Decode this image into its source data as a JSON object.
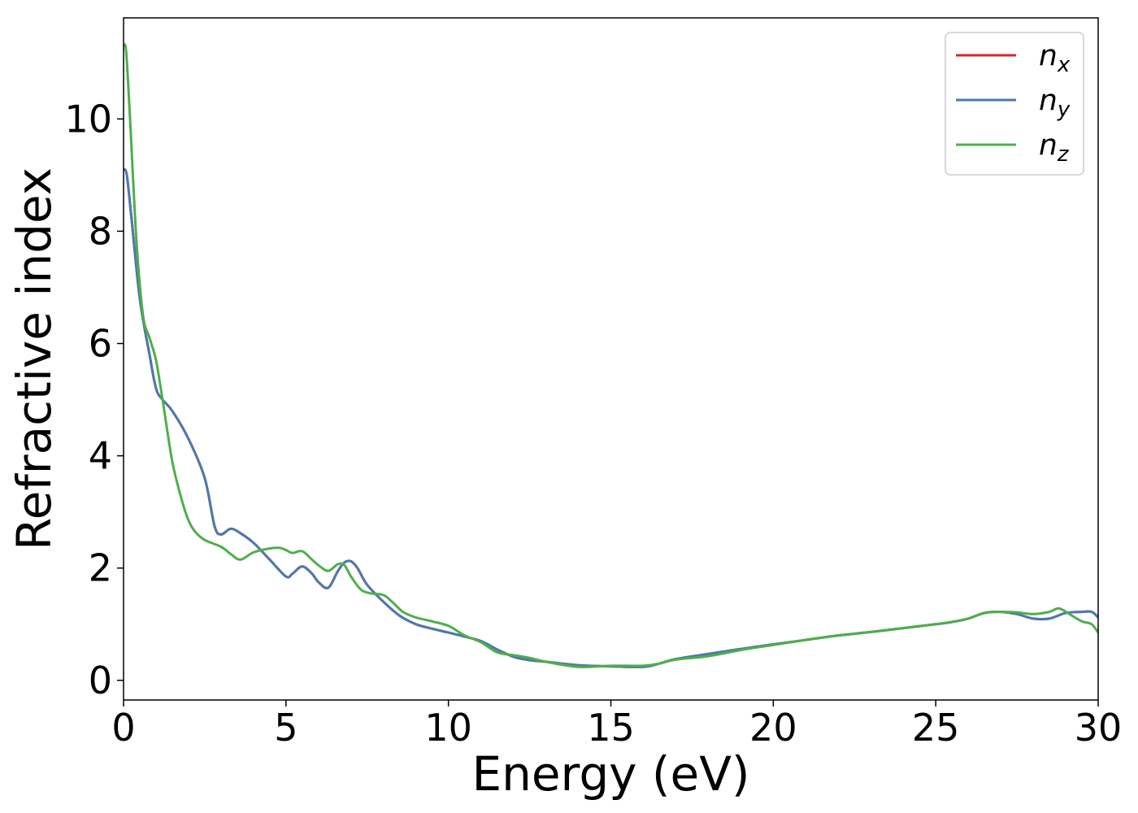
{
  "chart_data": {
    "type": "line",
    "title": "",
    "xlabel": "Energy (eV)",
    "ylabel": "Refractive index",
    "xlim": [
      0,
      30
    ],
    "ylim": [
      -0.35,
      11.8
    ],
    "xticks": [
      0,
      5,
      10,
      15,
      20,
      25,
      30
    ],
    "yticks": [
      0,
      2,
      4,
      6,
      8,
      10
    ],
    "grid": false,
    "legend_position": "top-right",
    "series": [
      {
        "name": "n",
        "subscript": "x",
        "color": "#d62728",
        "x": [
          0,
          0.1,
          0.25,
          0.5,
          0.8,
          1.0,
          1.2,
          1.5,
          2.0,
          2.5,
          2.8,
          3.0,
          3.3,
          3.6,
          4.0,
          4.5,
          5.0,
          5.2,
          5.5,
          5.8,
          6.0,
          6.3,
          6.6,
          6.8,
          7.0,
          7.2,
          7.5,
          8.0,
          8.5,
          9.0,
          9.5,
          10,
          10.5,
          11,
          11.5,
          12,
          12.5,
          13,
          14,
          15,
          16,
          16.5,
          17,
          18,
          19,
          20,
          21,
          22,
          23,
          24,
          25,
          25.5,
          26,
          26.5,
          27,
          27.5,
          28,
          28.5,
          29,
          29.5,
          29.8,
          30
        ],
        "values": [
          9.1,
          9.0,
          8.2,
          6.8,
          5.8,
          5.2,
          5.0,
          4.8,
          4.3,
          3.6,
          2.75,
          2.6,
          2.7,
          2.62,
          2.45,
          2.15,
          1.85,
          1.9,
          2.03,
          1.9,
          1.75,
          1.65,
          1.95,
          2.1,
          2.12,
          2.0,
          1.7,
          1.4,
          1.15,
          1.0,
          0.92,
          0.85,
          0.78,
          0.7,
          0.55,
          0.42,
          0.36,
          0.33,
          0.27,
          0.25,
          0.24,
          0.3,
          0.38,
          0.47,
          0.56,
          0.64,
          0.72,
          0.8,
          0.86,
          0.93,
          1.0,
          1.04,
          1.1,
          1.2,
          1.22,
          1.18,
          1.1,
          1.1,
          1.2,
          1.22,
          1.22,
          1.12
        ]
      },
      {
        "name": "n",
        "subscript": "y",
        "color": "#4a7ab0",
        "x": [
          0,
          0.1,
          0.25,
          0.5,
          0.8,
          1.0,
          1.2,
          1.5,
          2.0,
          2.5,
          2.8,
          3.0,
          3.3,
          3.6,
          4.0,
          4.5,
          5.0,
          5.2,
          5.5,
          5.8,
          6.0,
          6.3,
          6.6,
          6.8,
          7.0,
          7.2,
          7.5,
          8.0,
          8.5,
          9.0,
          9.5,
          10,
          10.5,
          11,
          11.5,
          12,
          12.5,
          13,
          14,
          15,
          16,
          16.5,
          17,
          18,
          19,
          20,
          21,
          22,
          23,
          24,
          25,
          25.5,
          26,
          26.5,
          27,
          27.5,
          28,
          28.5,
          29,
          29.5,
          29.8,
          30
        ],
        "values": [
          9.1,
          9.0,
          8.2,
          6.8,
          5.8,
          5.2,
          5.0,
          4.8,
          4.3,
          3.6,
          2.75,
          2.6,
          2.7,
          2.62,
          2.45,
          2.15,
          1.85,
          1.9,
          2.03,
          1.9,
          1.75,
          1.65,
          1.95,
          2.1,
          2.12,
          2.0,
          1.7,
          1.4,
          1.15,
          1.0,
          0.92,
          0.85,
          0.78,
          0.7,
          0.55,
          0.42,
          0.36,
          0.33,
          0.27,
          0.25,
          0.24,
          0.3,
          0.38,
          0.47,
          0.56,
          0.64,
          0.72,
          0.8,
          0.86,
          0.93,
          1.0,
          1.04,
          1.1,
          1.2,
          1.22,
          1.18,
          1.1,
          1.1,
          1.2,
          1.22,
          1.22,
          1.12
        ]
      },
      {
        "name": "n",
        "subscript": "z",
        "color": "#4daf4a",
        "x": [
          0,
          0.08,
          0.2,
          0.4,
          0.6,
          0.8,
          1.0,
          1.2,
          1.5,
          1.8,
          2.0,
          2.2,
          2.5,
          3.0,
          3.3,
          3.6,
          4.0,
          4.5,
          4.8,
          5.0,
          5.2,
          5.5,
          5.8,
          6.0,
          6.3,
          6.6,
          6.8,
          7.0,
          7.3,
          7.6,
          8.0,
          8.3,
          8.6,
          9.0,
          9.5,
          10,
          10.5,
          11,
          11.5,
          12,
          12.5,
          13,
          14,
          15,
          16,
          16.5,
          17,
          18,
          19,
          20,
          21,
          22,
          23,
          24,
          25,
          25.5,
          26,
          26.5,
          27,
          27.5,
          28,
          28.5,
          28.8,
          29.2,
          29.5,
          29.8,
          30
        ],
        "values": [
          11.3,
          11.2,
          10.0,
          7.8,
          6.5,
          6.1,
          5.7,
          5.0,
          3.9,
          3.2,
          2.85,
          2.65,
          2.5,
          2.38,
          2.25,
          2.15,
          2.28,
          2.35,
          2.36,
          2.32,
          2.27,
          2.3,
          2.15,
          2.05,
          1.95,
          2.07,
          2.05,
          1.85,
          1.62,
          1.55,
          1.52,
          1.38,
          1.22,
          1.12,
          1.05,
          0.97,
          0.8,
          0.68,
          0.5,
          0.45,
          0.4,
          0.33,
          0.24,
          0.26,
          0.26,
          0.3,
          0.37,
          0.43,
          0.54,
          0.63,
          0.72,
          0.8,
          0.86,
          0.93,
          1.0,
          1.04,
          1.1,
          1.2,
          1.22,
          1.21,
          1.18,
          1.22,
          1.28,
          1.15,
          1.05,
          1.0,
          0.85
        ]
      }
    ]
  }
}
